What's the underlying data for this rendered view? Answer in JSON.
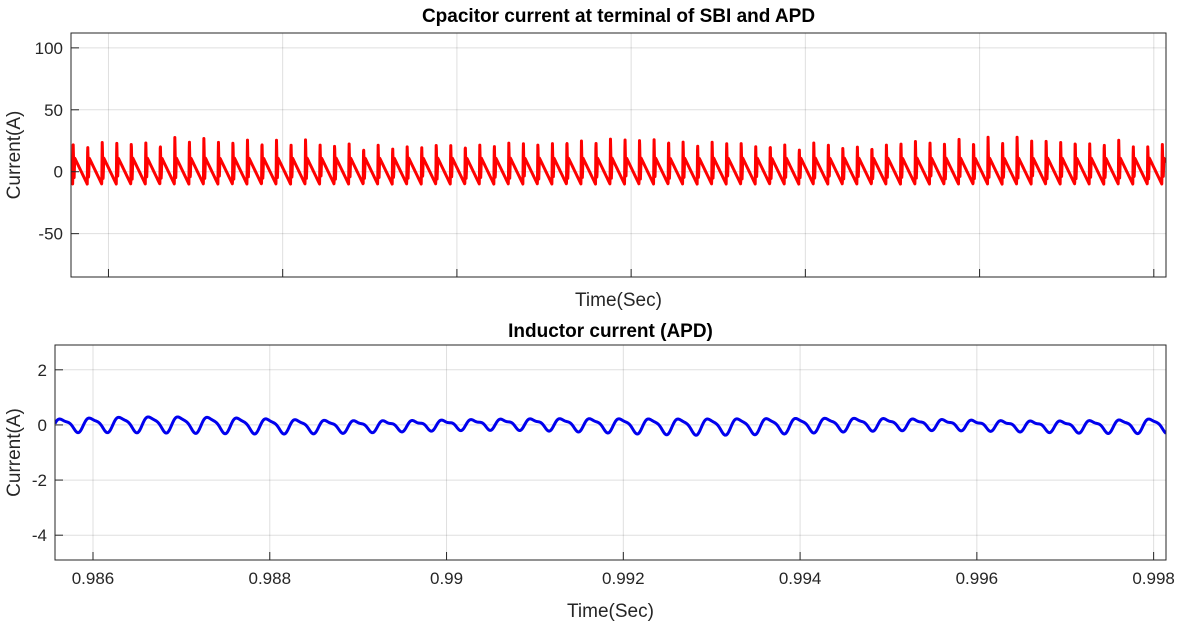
{
  "chart_data": [
    {
      "type": "line",
      "title": "Cpacitor current at terminal of SBI and APD",
      "xlabel": "Time(Sec)",
      "ylabel": "Current(A)",
      "xlim": [
        0.98557,
        0.99814
      ],
      "ylim": [
        -85,
        112
      ],
      "grid": true,
      "show_x_tick_labels": false,
      "yticks": [
        -50,
        0,
        50,
        100
      ],
      "ytick_labels": [
        "-50",
        "0",
        "50",
        "100"
      ],
      "xticks": [
        0.986,
        0.988,
        0.99,
        0.992,
        0.994,
        0.996,
        0.998
      ],
      "series": [
        {
          "color": "#ff0000",
          "waveform": "switching-ripple with current spikes",
          "pulse_period": 0.0001667,
          "baseline": 0,
          "ripple_peak": 11,
          "ripple_trough": -10,
          "spike_peak_range": [
            20,
            29
          ]
        }
      ]
    },
    {
      "type": "line",
      "title": "Inductor current (APD)",
      "xlabel": "Time(Sec)",
      "ylabel": "Current(A)",
      "xlim": [
        0.98557,
        0.99814
      ],
      "ylim": [
        -4.9,
        2.9
      ],
      "grid": true,
      "show_x_tick_labels": true,
      "yticks": [
        -4,
        -2,
        0,
        2
      ],
      "ytick_labels": [
        "-4",
        "-2",
        "0",
        "2"
      ],
      "xticks": [
        0.986,
        0.988,
        0.99,
        0.992,
        0.994,
        0.996,
        0.998
      ],
      "xtick_labels": [
        "0.986",
        "0.988",
        "0.99",
        "0.992",
        "0.994",
        "0.996",
        "0.998"
      ],
      "series": [
        {
          "color": "#0000ee",
          "waveform": "small sinusoidal ripple",
          "ripple_period": 0.000333,
          "amplitude": 0.22,
          "offset": 0
        }
      ]
    }
  ]
}
